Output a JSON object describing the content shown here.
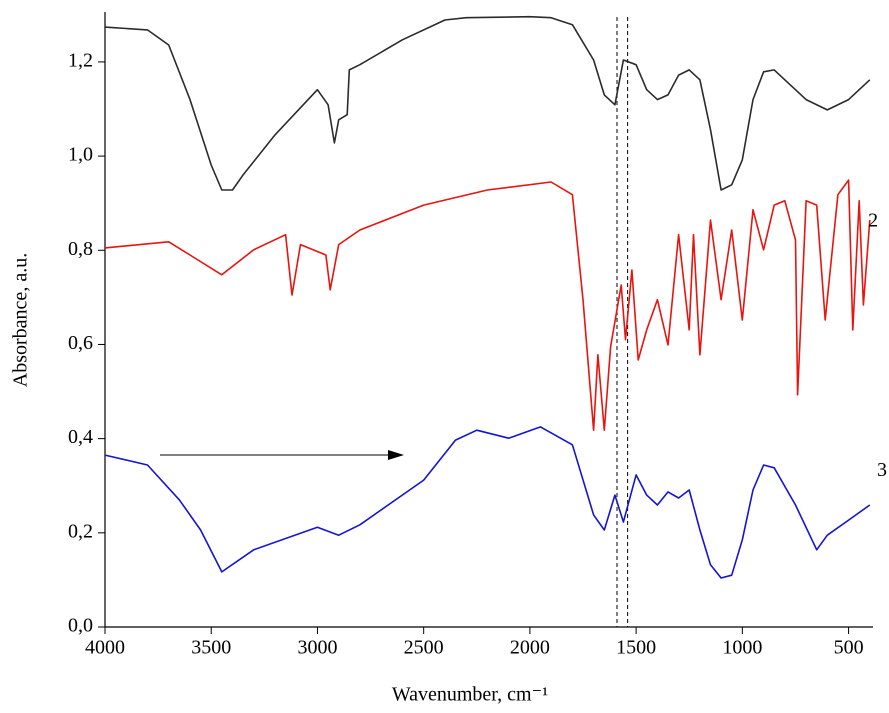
{
  "chart_data": {
    "type": "line",
    "xlabel": "Wavenumber, cm⁻¹",
    "ylabel": "Absorbance, a.u.",
    "xlim": [
      4000,
      385
    ],
    "ylim": [
      0,
      1.306
    ],
    "xticks": [
      4000,
      3500,
      3000,
      2500,
      2000,
      1500,
      1000,
      500
    ],
    "yticks": [
      {
        "value": 0,
        "label": "0,0"
      },
      {
        "value": 0.2,
        "label": "0,2"
      },
      {
        "value": 0.4,
        "label": "0,4"
      },
      {
        "value": 0.6,
        "label": "0,6"
      },
      {
        "value": 0.8,
        "label": "0,8"
      },
      {
        "value": 1.0,
        "label": "1,0"
      },
      {
        "value": 1.2,
        "label": "1,2"
      }
    ],
    "vlines": [
      1590,
      1540
    ],
    "series": [
      {
        "color": "#2b2b2b",
        "x": [
          4000,
          3800,
          3700,
          3600,
          3500,
          3450,
          3400,
          3350,
          3200,
          3000,
          2950,
          2920,
          2900,
          2860,
          2850,
          2800,
          2600,
          2400,
          2300,
          2000,
          1900,
          1800,
          1700,
          1650,
          1600,
          1560,
          1500,
          1450,
          1400,
          1350,
          1300,
          1250,
          1200,
          1150,
          1100,
          1050,
          1000,
          950,
          900,
          850,
          800,
          700,
          600,
          500,
          400
        ],
        "values": [
          1.274,
          1.268,
          1.236,
          1.12,
          0.981,
          0.928,
          0.928,
          0.96,
          1.045,
          1.141,
          1.109,
          1.028,
          1.077,
          1.088,
          1.183,
          1.194,
          1.247,
          1.289,
          1.294,
          1.296,
          1.294,
          1.279,
          1.204,
          1.13,
          1.109,
          1.204,
          1.194,
          1.141,
          1.12,
          1.13,
          1.172,
          1.183,
          1.162,
          1.056,
          0.928,
          0.939,
          0.992,
          1.12,
          1.179,
          1.183,
          1.162,
          1.12,
          1.098,
          1.12,
          1.162
        ]
      },
      {
        "color": "#e8140f",
        "x": [
          4000,
          3700,
          3600,
          3450,
          3300,
          3150,
          3120,
          3080,
          2960,
          2940,
          2900,
          2800,
          2500,
          2200,
          1900,
          1800,
          1750,
          1700,
          1680,
          1650,
          1620,
          1570,
          1550,
          1520,
          1490,
          1450,
          1400,
          1350,
          1300,
          1250,
          1230,
          1200,
          1150,
          1100,
          1050,
          1000,
          950,
          900,
          850,
          800,
          750,
          740,
          700,
          650,
          610,
          550,
          500,
          480,
          450,
          430,
          400
        ],
        "values": [
          0.805,
          0.818,
          0.79,
          0.748,
          0.801,
          0.833,
          0.705,
          0.812,
          0.79,
          0.716,
          0.812,
          0.843,
          0.896,
          0.928,
          0.945,
          0.918,
          0.695,
          0.418,
          0.578,
          0.418,
          0.595,
          0.726,
          0.61,
          0.758,
          0.567,
          0.631,
          0.695,
          0.599,
          0.833,
          0.631,
          0.833,
          0.578,
          0.864,
          0.695,
          0.843,
          0.652,
          0.886,
          0.801,
          0.896,
          0.905,
          0.822,
          0.493,
          0.905,
          0.896,
          0.652,
          0.918,
          0.949,
          0.631,
          0.905,
          0.684,
          0.864
        ]
      },
      {
        "color": "#1414d2",
        "x": [
          4000,
          3800,
          3650,
          3550,
          3450,
          3300,
          3000,
          2900,
          2800,
          2500,
          2350,
          2250,
          2100,
          1950,
          1800,
          1700,
          1650,
          1600,
          1560,
          1500,
          1450,
          1400,
          1350,
          1300,
          1250,
          1200,
          1150,
          1100,
          1050,
          1000,
          950,
          900,
          850,
          750,
          650,
          600,
          500,
          400
        ],
        "values": [
          0.365,
          0.344,
          0.27,
          0.206,
          0.117,
          0.164,
          0.212,
          0.195,
          0.217,
          0.312,
          0.397,
          0.418,
          0.401,
          0.425,
          0.387,
          0.238,
          0.206,
          0.28,
          0.223,
          0.323,
          0.28,
          0.259,
          0.287,
          0.274,
          0.291,
          0.206,
          0.132,
          0.104,
          0.11,
          0.185,
          0.291,
          0.344,
          0.338,
          0.259,
          0.164,
          0.195,
          0.227,
          0.259
        ]
      }
    ],
    "annotations": [
      {
        "text": "2",
        "x": 408,
        "y": 0.86
      },
      {
        "text": "3",
        "x": 366,
        "y": 0.33
      }
    ]
  }
}
